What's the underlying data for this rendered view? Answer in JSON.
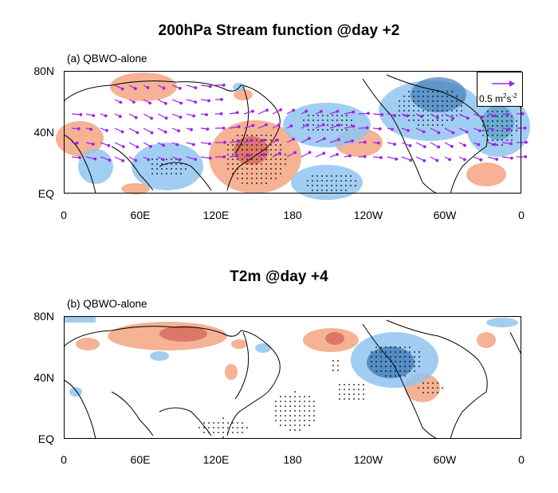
{
  "panel_a": {
    "title": "200hPa Stream function @day +2",
    "label": "(a) QBWO-alone",
    "ref_vector": {
      "value": "0.5 m",
      "sup1": "2",
      "mid": "s",
      "sup2": "-2"
    },
    "y_ticks": [
      "80N",
      "40N",
      "EQ"
    ],
    "x_ticks": [
      "0",
      "60E",
      "120E",
      "180",
      "120W",
      "60W",
      "0"
    ]
  },
  "panel_b": {
    "title": "T2m @day +4",
    "label": "(b) QBWO-alone",
    "y_ticks": [
      "80N",
      "40N",
      "EQ"
    ],
    "x_ticks": [
      "0",
      "60E",
      "120E",
      "180",
      "120W",
      "60W",
      "0"
    ]
  },
  "colors": {
    "positive": "#f4a582",
    "positive_strong": "#d6604d",
    "negative": "#92c5f0",
    "negative_strong": "#2166ac",
    "vector": "#a020f0"
  }
}
